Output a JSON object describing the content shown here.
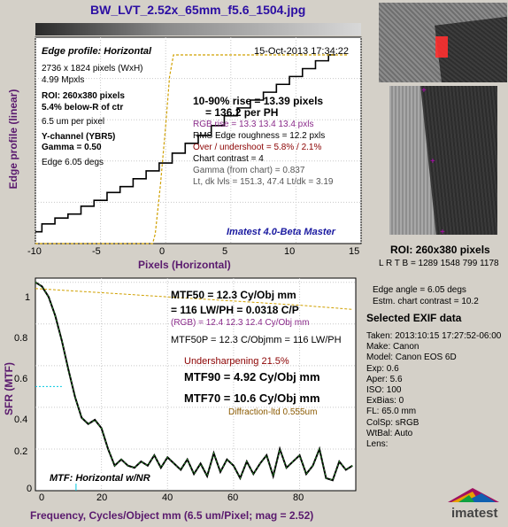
{
  "title": "BW_LVT_2.52x_65mm_f5.6_1504.jpg",
  "colors": {
    "background": "#d4d0c8",
    "accent": "#2b0ea3",
    "label": "#5a1a6e",
    "edge_line": "#000000",
    "guide_line": "#d0a000"
  },
  "edge": {
    "header": "Edge profile: Horizontal",
    "date": "15-Oct-2013 17:34:22",
    "info": {
      "size": "2736 x 1824 pixels (WxH)",
      "mpxls": "4.99 Mpxls",
      "roi": "ROI:  260x380 pixels",
      "roi_pos": "5.4% below-R of ctr",
      "pixel": "6.5 um per pixel",
      "channel": "Y-channel  (YBR5)",
      "gamma": "Gamma = 0.50",
      "edge_angle": "Edge 6.05 degs"
    },
    "stats": {
      "rise": "10-90% rise = 13.39 pixels",
      "ph": "= 136.2 per PH",
      "rgb_rise": "RGB rise = 13.3  13.4  13.4 pxls",
      "roughness": "RMS Edge roughness = 12.2 pxls",
      "overshoot": "Over / undershoot = 5.8% / 2.1%",
      "contrast": "Chart contrast = 4",
      "gamma_chart": "Gamma (from chart) = 0.837",
      "levels": "Lt, dk lvls = 151.3, 47.4   Lt/dk = 3.19"
    },
    "version": "Imatest 4.0-Beta Master",
    "xlabel": "Pixels (Horizontal)",
    "ylabel": "Edge profile (linear)",
    "xticks": [
      "-10",
      "-5",
      "0",
      "5",
      "10",
      "15"
    ]
  },
  "mtf": {
    "mtf50": "MTF50 = 12.3 Cy/Obj mm",
    "lwph": "= 116 LW/PH = 0.0318 C/P",
    "rgb": "(RGB) = 12.4  12.3  12.4 Cy/Obj mm",
    "mtf50p": "MTF50P = 12.3 C/Objmm = 116 LW/PH",
    "undersharp": "Undersharpening 21.5%",
    "mtf90": "MTF90 = 4.92 Cy/Obj mm",
    "mtf70": "MTF70 = 10.6 Cy/Obj mm",
    "diffraction": "Diffraction-ltd  0.555um",
    "corner_label": "MTF: Horizontal w/NR",
    "xlabel": "Frequency, Cycles/Object mm  (6.5 um/Pixel;  mag = 2.52)",
    "ylabel": "SFR (MTF)",
    "xticks": [
      "0",
      "20",
      "40",
      "60",
      "80"
    ],
    "yticks": [
      "0",
      "0.2",
      "0.4",
      "0.6",
      "0.8",
      "1"
    ]
  },
  "roi_panel": {
    "title": "ROI:  260x380 pixels",
    "lrtb": "L R T B = 1289 1548  799 1178"
  },
  "right_info": {
    "edge_angle": "Edge angle = 6.05 degs",
    "chart_contrast": "Estm. chart contrast = 10.2"
  },
  "exif": {
    "title": "Selected EXIF data",
    "rows": [
      "Taken: 2013:10:15 17:27:52-06:00",
      "Make:  Canon",
      "Model:  Canon EOS 6D",
      "Exp:     0.6",
      "Aper:    5.6",
      "ISO:     100",
      "ExBias:  0",
      "FL:       65.0 mm",
      "ColSp:  sRGB",
      "WtBal:  Auto",
      "Lens:"
    ]
  },
  "logo_text": "imatest",
  "chart_data": [
    {
      "type": "line",
      "title": "Edge profile: Horizontal",
      "xlabel": "Pixels (Horizontal)",
      "ylabel": "Edge profile (linear)",
      "xlim": [
        -10,
        15
      ],
      "ylim": [
        0,
        1.05
      ],
      "grid": true,
      "series": [
        {
          "x": [
            -10,
            -9,
            -8,
            -7,
            -6,
            -5,
            -4,
            -3,
            -2,
            -1,
            0,
            1,
            2,
            3,
            4,
            5,
            6,
            7,
            8,
            9,
            10,
            11,
            12,
            13
          ],
          "values": [
            0.06,
            0.1,
            0.13,
            0.15,
            0.19,
            0.22,
            0.26,
            0.29,
            0.33,
            0.37,
            0.41,
            0.46,
            0.51,
            0.55,
            0.6,
            0.65,
            0.69,
            0.73,
            0.77,
            0.81,
            0.85,
            0.89,
            0.93,
            0.96
          ]
        },
        {
          "x": [
            -10,
            -1,
            -0.8,
            -0.4,
            0,
            0.3,
            0.6,
            14
          ],
          "values": [
            0.0,
            0.0,
            0.05,
            0.3,
            0.6,
            0.85,
            0.96,
            0.96
          ]
        }
      ]
    },
    {
      "type": "line",
      "title": "",
      "xlabel": "Frequency, Cycles/Object mm  (6.5 um/Pixel;  mag = 2.52)",
      "ylabel": "SFR (MTF)",
      "xlim": [
        0,
        97
      ],
      "ylim": [
        0,
        1.02
      ],
      "grid": true,
      "series": [
        {
          "x": [
            0,
            2,
            4,
            6,
            8,
            10,
            12,
            14,
            16,
            18,
            20,
            22,
            24,
            26,
            28,
            30,
            32,
            34,
            36,
            38,
            40,
            42,
            44,
            46,
            48,
            50,
            52,
            54,
            56,
            58,
            60,
            62,
            64,
            66,
            68,
            70,
            72,
            74,
            76,
            78,
            80,
            82,
            84,
            86,
            88,
            90,
            92,
            94,
            96
          ],
          "values": [
            1.0,
            0.98,
            0.93,
            0.84,
            0.72,
            0.58,
            0.45,
            0.35,
            0.32,
            0.34,
            0.3,
            0.2,
            0.12,
            0.15,
            0.12,
            0.11,
            0.14,
            0.12,
            0.17,
            0.11,
            0.16,
            0.13,
            0.1,
            0.15,
            0.08,
            0.13,
            0.07,
            0.18,
            0.09,
            0.15,
            0.12,
            0.06,
            0.14,
            0.08,
            0.13,
            0.17,
            0.07,
            0.2,
            0.11,
            0.14,
            0.17,
            0.08,
            0.12,
            0.2,
            0.06,
            0.05,
            0.14,
            0.1,
            0.12
          ]
        },
        {
          "x": [
            0,
            20,
            40,
            60,
            80,
            96
          ],
          "values": [
            0.97,
            0.95,
            0.93,
            0.91,
            0.89,
            0.87
          ]
        }
      ]
    }
  ]
}
